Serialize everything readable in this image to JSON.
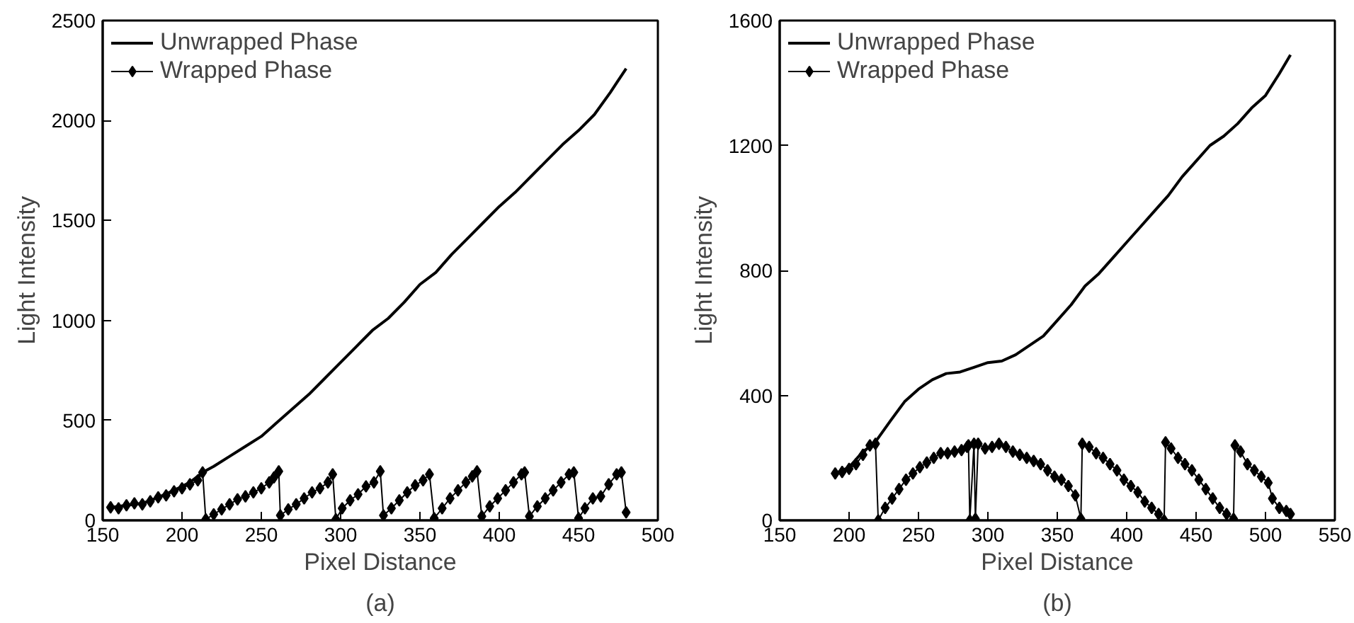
{
  "chart_data": [
    {
      "type": "line",
      "xlabel": "Pixel Distance",
      "ylabel": "Light Intensity",
      "annotations": [
        "(a)"
      ],
      "xlim": [
        150,
        500
      ],
      "ylim": [
        0,
        2500
      ],
      "xticks": [
        150,
        200,
        250,
        300,
        350,
        400,
        450,
        500
      ],
      "yticks": [
        0,
        500,
        1000,
        1500,
        2000,
        2500
      ],
      "grid": false,
      "legend": "top left",
      "series": [
        {
          "name": "Unwrapped Phase",
          "color": "#000000",
          "marker": "none",
          "x": [
            155,
            165,
            175,
            185,
            195,
            205,
            213,
            220,
            230,
            240,
            250,
            260,
            270,
            280,
            290,
            300,
            310,
            320,
            330,
            340,
            350,
            360,
            370,
            380,
            390,
            400,
            410,
            420,
            430,
            440,
            450,
            460,
            470,
            475,
            480
          ],
          "values": [
            65,
            75,
            85,
            115,
            150,
            190,
            240,
            270,
            320,
            370,
            420,
            490,
            560,
            630,
            710,
            790,
            870,
            950,
            1010,
            1090,
            1180,
            1240,
            1330,
            1410,
            1490,
            1570,
            1640,
            1720,
            1800,
            1880,
            1950,
            2030,
            2140,
            2200,
            2260
          ]
        },
        {
          "name": "Wrapped Phase",
          "color": "#000000",
          "marker": "diamond",
          "x": [
            155,
            160,
            165,
            170,
            175,
            180,
            185,
            190,
            195,
            200,
            205,
            210,
            213,
            215,
            220,
            225,
            230,
            235,
            240,
            245,
            250,
            255,
            258,
            261,
            262,
            267,
            272,
            277,
            282,
            287,
            292,
            295,
            297,
            301,
            306,
            311,
            316,
            321,
            325,
            327,
            332,
            337,
            342,
            347,
            352,
            356,
            359,
            364,
            369,
            374,
            379,
            383,
            386,
            389,
            394,
            399,
            404,
            409,
            414,
            416,
            419,
            424,
            429,
            434,
            439,
            444,
            447,
            450,
            454,
            459,
            464,
            469,
            474,
            477,
            480
          ],
          "values": [
            65,
            60,
            75,
            85,
            80,
            95,
            115,
            125,
            145,
            160,
            180,
            200,
            240,
            5,
            30,
            55,
            80,
            105,
            120,
            140,
            160,
            190,
            215,
            245,
            25,
            55,
            80,
            110,
            140,
            160,
            190,
            230,
            5,
            60,
            100,
            130,
            170,
            190,
            245,
            25,
            60,
            100,
            140,
            175,
            200,
            230,
            10,
            60,
            110,
            150,
            190,
            220,
            245,
            20,
            70,
            110,
            150,
            190,
            230,
            240,
            20,
            70,
            110,
            150,
            190,
            230,
            240,
            10,
            60,
            110,
            120,
            180,
            230,
            240,
            40
          ]
        }
      ]
    },
    {
      "type": "line",
      "xlabel": "Pixel Distance",
      "ylabel": "Light Intensity",
      "annotations": [
        "(b)"
      ],
      "xlim": [
        150,
        550
      ],
      "ylim": [
        0,
        1600
      ],
      "xticks": [
        150,
        200,
        250,
        300,
        350,
        400,
        450,
        500,
        550
      ],
      "yticks": [
        0,
        400,
        800,
        1200,
        1600
      ],
      "grid": false,
      "legend": "top left",
      "series": [
        {
          "name": "Unwrapped Phase",
          "color": "#000000",
          "marker": "none",
          "x": [
            190,
            200,
            210,
            218,
            230,
            240,
            250,
            260,
            270,
            280,
            290,
            300,
            310,
            320,
            330,
            340,
            350,
            360,
            370,
            380,
            390,
            400,
            410,
            420,
            430,
            440,
            450,
            460,
            470,
            480,
            490,
            500,
            510,
            518
          ],
          "values": [
            150,
            170,
            220,
            245,
            320,
            380,
            420,
            450,
            470,
            475,
            490,
            505,
            510,
            530,
            560,
            590,
            640,
            690,
            750,
            790,
            840,
            890,
            940,
            990,
            1040,
            1100,
            1150,
            1200,
            1230,
            1270,
            1320,
            1360,
            1430,
            1490
          ]
        },
        {
          "name": "Wrapped Phase",
          "color": "#000000",
          "marker": "diamond",
          "x": [
            190,
            195,
            200,
            205,
            210,
            215,
            219,
            221,
            226,
            231,
            236,
            241,
            246,
            251,
            256,
            261,
            266,
            271,
            276,
            281,
            285,
            286,
            287,
            290,
            291,
            293,
            298,
            303,
            308,
            313,
            318,
            323,
            328,
            333,
            338,
            343,
            348,
            353,
            358,
            363,
            367,
            368,
            373,
            378,
            383,
            388,
            393,
            398,
            403,
            408,
            413,
            418,
            423,
            427,
            428,
            432,
            437,
            442,
            447,
            452,
            457,
            462,
            467,
            472,
            477,
            478,
            482,
            487,
            492,
            497,
            502,
            505,
            510,
            515,
            518
          ],
          "values": [
            150,
            155,
            165,
            180,
            210,
            240,
            245,
            0,
            40,
            70,
            100,
            130,
            150,
            170,
            185,
            200,
            215,
            215,
            220,
            225,
            235,
            240,
            0,
            245,
            5,
            245,
            230,
            235,
            245,
            235,
            220,
            210,
            200,
            190,
            180,
            160,
            140,
            130,
            110,
            80,
            5,
            245,
            235,
            215,
            200,
            180,
            160,
            130,
            110,
            90,
            60,
            40,
            20,
            0,
            250,
            230,
            200,
            180,
            160,
            130,
            100,
            70,
            40,
            20,
            5,
            240,
            220,
            180,
            160,
            140,
            120,
            70,
            40,
            30,
            20
          ]
        }
      ]
    }
  ]
}
